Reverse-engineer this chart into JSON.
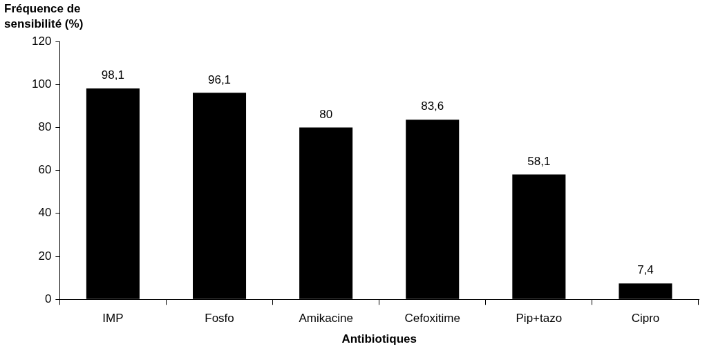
{
  "chart_data": {
    "type": "bar",
    "ylabel": "Fréquence de sensibilité (%)",
    "xlabel": "Antibiotiques",
    "categories": [
      "IMP",
      "Fosfo",
      "Amikacine",
      "Cefoxitime",
      "Pip+tazo",
      "Cipro"
    ],
    "values": [
      98.1,
      96.1,
      80,
      83.6,
      58.1,
      7.4
    ],
    "value_labels": [
      "98,1",
      "96,1",
      "80",
      "83,6",
      "58,1",
      "7,4"
    ],
    "color": "#000000",
    "ylim": [
      0,
      120
    ],
    "yticks": [
      0,
      20,
      40,
      60,
      80,
      100,
      120
    ],
    "grid": false,
    "legend": false
  }
}
